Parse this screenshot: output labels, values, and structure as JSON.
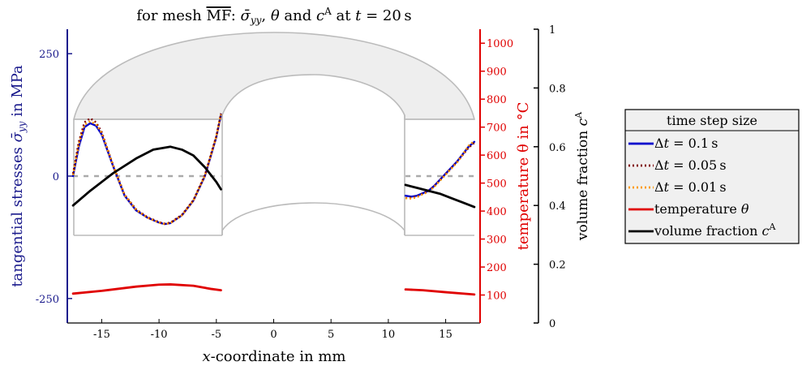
{
  "chart_data": {
    "type": "line",
    "title": "for mesh ̅MF: σ̄_yy, θ and c^A at t = 20 s",
    "title_parts": {
      "prefix": "for mesh ",
      "mesh": "MF",
      "sep1": ": ",
      "sigma": "σ̄",
      "sigma_sub": "yy",
      "sep2": ", ",
      "theta": "θ",
      "and": " and ",
      "c": "c",
      "c_sup": "A",
      "at": " at ",
      "t": "t",
      "eq": " = 20 s"
    },
    "xlabel": "x-coordinate in mm",
    "xlabel_parts": {
      "var": "x",
      "rest": "-coordinate in mm"
    },
    "ylabel_left": "tangential stresses σ̄_yy in MPa",
    "ylabel_left_parts": {
      "prefix": "tangential stresses ",
      "sigma": "σ̄",
      "sub": "yy",
      "suffix": " in MPa"
    },
    "ylabel_red": "temperature θ in °C",
    "ylabel_black": "volume fraction c^A",
    "ylabel_black_parts": {
      "prefix": "volume fraction ",
      "c": "c",
      "sup": "A"
    },
    "xlim": [
      -18,
      18
    ],
    "ylim_left": [
      -300,
      300
    ],
    "ylim_red": [
      0,
      1050
    ],
    "ylim_black": [
      0,
      1
    ],
    "x_ticks": [
      "-15",
      "-10",
      "-5",
      "0",
      "5",
      "10",
      "15"
    ],
    "x_tick_values": [
      -15,
      -10,
      -5,
      0,
      5,
      10,
      15
    ],
    "left_ticks": [
      "-250",
      "0",
      "250"
    ],
    "left_tick_values": [
      -250,
      0,
      250
    ],
    "red_ticks": [
      "100",
      "200",
      "300",
      "400",
      "500",
      "600",
      "700",
      "800",
      "900",
      "1000"
    ],
    "red_tick_values": [
      100,
      200,
      300,
      400,
      500,
      600,
      700,
      800,
      900,
      1000
    ],
    "black_ticks": [
      "0",
      "0.2",
      "0.4",
      "0.6",
      "0.8",
      "1"
    ],
    "black_tick_values": [
      0,
      0.2,
      0.4,
      0.6,
      0.8,
      1
    ],
    "colors": {
      "dt01": "#0000cc",
      "dt005": "#800000",
      "dt001": "#ff9900",
      "temperature": "#e00000",
      "volume": "#000000",
      "zero_line": "#aaaaaa",
      "shape": "#bbbbbb",
      "shape_fill": "#eeeeee",
      "left_axis": "#1a1a8c",
      "red_axis": "#e00000"
    },
    "series": [
      {
        "name": "Δt = 0.1 s",
        "axis": "left",
        "style": "solid",
        "segments": [
          {
            "x": [
              -17.5,
              -17.0,
              -16.5,
              -16.0,
              -15.5,
              -15.0,
              -14.0,
              -13.0,
              -12.0,
              -11.0,
              -10.0,
              -9.5,
              -9.0,
              -8.0,
              -7.0,
              -6.0,
              -5.0,
              -4.6
            ],
            "y": [
              0,
              60,
              100,
              108,
              103,
              85,
              20,
              -40,
              -70,
              -85,
              -95,
              -98,
              -96,
              -80,
              -50,
              0,
              80,
              125
            ]
          },
          {
            "x": [
              11.5,
              12.0,
              12.5,
              13.0,
              13.5,
              14.0,
              15.0,
              16.0,
              17.0,
              17.5
            ],
            "y": [
              -40,
              -42,
              -40,
              -35,
              -30,
              -20,
              5,
              30,
              60,
              70
            ]
          }
        ]
      },
      {
        "name": "Δt = 0.05 s",
        "axis": "left",
        "style": "dotted",
        "segments": [
          {
            "x": [
              -17.5,
              -17.0,
              -16.5,
              -16.0,
              -15.5,
              -15.0,
              -14.0,
              -13.0,
              -12.0,
              -11.0,
              -10.0,
              -9.5,
              -9.0,
              -8.0,
              -7.0,
              -6.0,
              -5.0,
              -4.6
            ],
            "y": [
              5,
              70,
              110,
              118,
              110,
              90,
              22,
              -38,
              -68,
              -84,
              -94,
              -97,
              -95,
              -79,
              -49,
              2,
              82,
              128
            ]
          },
          {
            "x": [
              11.5,
              12.0,
              12.5,
              13.0,
              13.5,
              14.0,
              15.0,
              16.0,
              17.0,
              17.5
            ],
            "y": [
              -45,
              -44,
              -42,
              -36,
              -31,
              -21,
              4,
              29,
              58,
              68
            ]
          }
        ]
      },
      {
        "name": "Δt = 0.01 s",
        "axis": "left",
        "style": "dotted",
        "segments": [
          {
            "x": [
              -17.5,
              -17.0,
              -16.5,
              -16.0,
              -15.5,
              -15.0,
              -14.0,
              -13.0,
              -12.0,
              -11.0,
              -10.0,
              -9.5,
              -9.0,
              -8.0,
              -7.0,
              -6.0,
              -5.0,
              -4.6
            ],
            "y": [
              2,
              65,
              105,
              112,
              106,
              88,
              21,
              -39,
              -69,
              -85,
              -95,
              -98,
              -96,
              -80,
              -50,
              1,
              81,
              126
            ]
          },
          {
            "x": [
              11.5,
              12.0,
              12.5,
              13.0,
              13.5,
              14.0,
              15.0,
              16.0,
              17.0,
              17.5
            ],
            "y": [
              -45,
              -46,
              -43,
              -37,
              -32,
              -22,
              3,
              28,
              62,
              72
            ]
          }
        ]
      },
      {
        "name": "temperature θ",
        "axis": "red",
        "style": "solid",
        "segments": [
          {
            "x": [
              -17.5,
              -15,
              -12,
              -10,
              -9,
              -7,
              -5.5,
              -4.6
            ],
            "y": [
              105,
              115,
              130,
              137,
              138,
              133,
              122,
              117
            ]
          },
          {
            "x": [
              11.5,
              13,
              15,
              17.5
            ],
            "y": [
              120,
              117,
              110,
              102
            ]
          }
        ]
      },
      {
        "name": "volume fraction c^A",
        "axis": "black",
        "style": "solid",
        "segments": [
          {
            "x": [
              -17.5,
              -16,
              -14,
              -12,
              -10.5,
              -9,
              -8,
              -7,
              -6,
              -5,
              -4.6
            ],
            "y": [
              0.4,
              0.45,
              0.51,
              0.56,
              0.59,
              0.6,
              0.59,
              0.57,
              0.53,
              0.48,
              0.455
            ]
          },
          {
            "x": [
              11.5,
              12.5,
              13.5,
              14.5,
              15.5,
              16.5,
              17.5
            ],
            "y": [
              0.47,
              0.46,
              0.45,
              0.44,
              0.425,
              0.41,
              0.395
            ]
          }
        ]
      }
    ],
    "legend": {
      "title": "time step size",
      "entries": [
        {
          "label_prefix": "Δ",
          "label_var": "t",
          "label_suffix": " = 0.1 s"
        },
        {
          "label_prefix": "Δ",
          "label_var": "t",
          "label_suffix": " = 0.05 s"
        },
        {
          "label_prefix": "Δ",
          "label_var": "t",
          "label_suffix": " = 0.01 s"
        },
        {
          "label_prefix": "temperature ",
          "label_var": "θ",
          "label_suffix": ""
        },
        {
          "label_prefix": "volume fraction ",
          "label_var": "c",
          "label_suffix": "",
          "sup": "A"
        }
      ]
    }
  }
}
